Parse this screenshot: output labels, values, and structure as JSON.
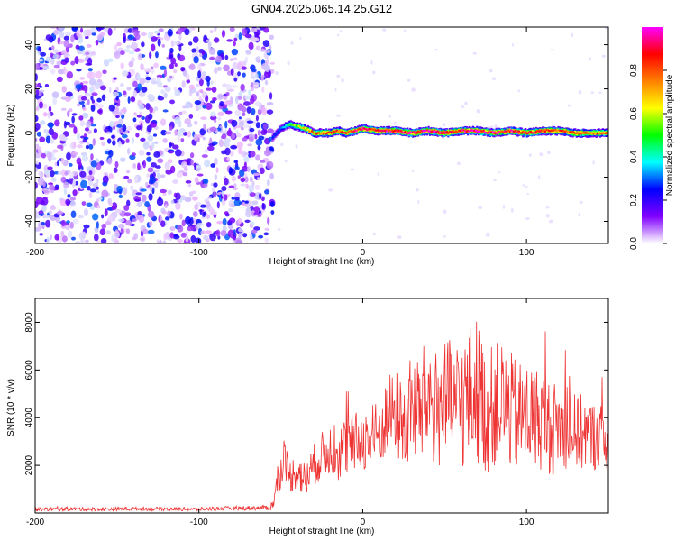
{
  "figure": {
    "title": "GN04.2025.065.14.25.G12"
  },
  "chart_data": [
    {
      "type": "heatmap",
      "title": "GN04.2025.065.14.25.G12",
      "xlabel": "Height of straight line (km)",
      "ylabel": "Frequency (Hz)",
      "xlim": [
        -200,
        150
      ],
      "ylim": [
        -50,
        48
      ],
      "xticks": [
        -200,
        -100,
        0,
        100
      ],
      "yticks": [
        -40,
        -20,
        0,
        20,
        40
      ],
      "colorbar": {
        "label": "Normalized spectral amplitude",
        "range": [
          0,
          1
        ],
        "ticks": [
          0.0,
          0.2,
          0.4,
          0.6,
          0.8
        ],
        "colors": [
          "#ffffff",
          "#8000ff",
          "#0000ff",
          "#00ffff",
          "#00ff00",
          "#ffff00",
          "#ff8000",
          "#ff0000",
          "#ff00ff"
        ]
      },
      "noise_region": {
        "x": [
          -200,
          -55
        ],
        "amplitude": [
          0.05,
          0.3
        ]
      },
      "signal_onset_x": -55,
      "tone_track": {
        "x": [
          -55,
          -50,
          -45,
          -40,
          -35,
          -30,
          -25,
          -20,
          -15,
          -10,
          -5,
          0,
          10,
          20,
          30,
          40,
          50,
          60,
          70,
          80,
          90,
          100,
          110,
          120,
          130,
          140,
          150
        ],
        "y": [
          -2,
          2,
          4,
          3,
          2,
          0,
          0,
          0,
          1,
          0,
          1,
          2,
          1,
          1,
          0,
          1,
          0,
          1,
          1,
          0,
          1,
          0,
          1,
          1,
          0,
          0,
          0
        ],
        "amplitude": [
          0.25,
          0.3,
          0.5,
          0.6,
          0.7,
          0.8,
          0.8,
          0.85,
          0.85,
          0.85,
          0.9,
          0.9,
          0.9,
          0.95,
          0.95,
          0.95,
          0.95,
          0.95,
          0.95,
          0.95,
          0.9,
          0.9,
          0.9,
          0.85,
          0.85,
          0.8,
          0.8
        ]
      }
    },
    {
      "type": "line",
      "xlabel": "Height of straight line (km)",
      "ylabel": "SNR (10 * v/v)",
      "xlim": [
        -200,
        150
      ],
      "ylim": [
        0,
        9000
      ],
      "xticks": [
        -200,
        -100,
        0,
        100
      ],
      "yticks": [
        2000,
        4000,
        6000,
        8000
      ],
      "color": "#ee3333",
      "series": [
        {
          "x": [
            -200,
            -180,
            -160,
            -140,
            -120,
            -100,
            -80,
            -60,
            -55,
            -52,
            -50,
            -48,
            -45,
            -40,
            -35,
            -30,
            -25,
            -20,
            -15,
            -10,
            -5,
            0,
            5,
            10,
            15,
            20,
            25,
            30,
            35,
            40,
            45,
            50,
            55,
            60,
            65,
            70,
            75,
            80,
            85,
            90,
            95,
            100,
            105,
            110,
            115,
            120,
            125,
            130,
            135,
            140,
            145,
            150
          ],
          "y": [
            150,
            170,
            160,
            180,
            170,
            160,
            200,
            220,
            300,
            1300,
            1700,
            2500,
            1500,
            1800,
            1300,
            2000,
            2400,
            2700,
            2500,
            2800,
            2900,
            3100,
            3000,
            3400,
            4000,
            4300,
            3600,
            4500,
            4200,
            5000,
            4200,
            4800,
            4400,
            4600,
            4900,
            5200,
            4200,
            4500,
            4700,
            4300,
            4000,
            4100,
            4000,
            3900,
            3500,
            3700,
            3600,
            3300,
            3400,
            3200,
            3300,
            3000
          ],
          "spread": [
            80,
            80,
            80,
            80,
            80,
            80,
            90,
            100,
            200,
            600,
            700,
            800,
            700,
            800,
            800,
            900,
            1000,
            1100,
            1200,
            1300,
            1300,
            1300,
            1400,
            1500,
            1700,
            1900,
            2000,
            2300,
            2400,
            2600,
            2600,
            2600,
            2800,
            2800,
            3000,
            3100,
            2700,
            2600,
            2600,
            2500,
            2400,
            2300,
            2200,
            2100,
            2000,
            1900,
            1800,
            1700,
            1600,
            1500,
            1400,
            1300
          ]
        }
      ]
    }
  ]
}
